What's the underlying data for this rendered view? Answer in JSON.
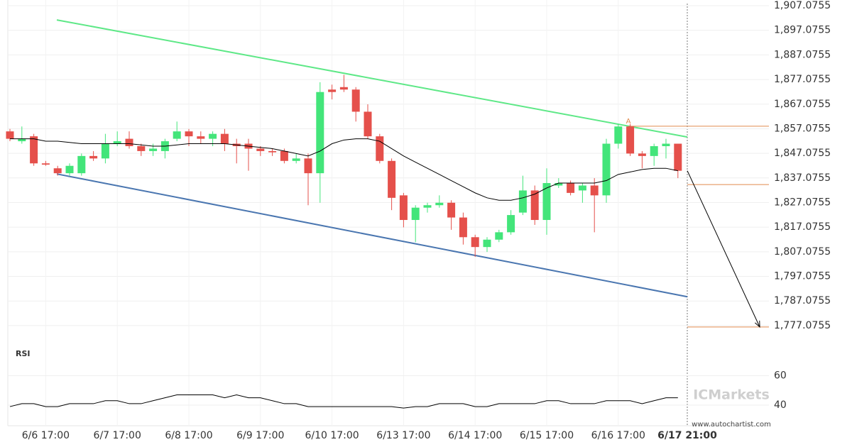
{
  "chart_data": [
    {
      "type": "candlestick",
      "categories": [
        null,
        null,
        null,
        "6/6 17:00",
        null,
        null,
        null,
        null,
        null,
        "6/7 17:00",
        null,
        null,
        null,
        null,
        null,
        "6/8 17:00",
        null,
        null,
        null,
        null,
        null,
        "6/9 17:00",
        null,
        null,
        null,
        null,
        null,
        "6/10 17:00",
        null,
        null,
        null,
        null,
        null,
        "6/13 17:00",
        null,
        null,
        null,
        null,
        null,
        "6/14 17:00",
        null,
        null,
        null,
        null,
        null,
        "6/15 17:00",
        null,
        null,
        null,
        null,
        null,
        "6/16 17:00",
        null,
        null,
        null,
        null,
        null
      ],
      "open": [
        1856,
        1852,
        1854,
        1843,
        1841,
        1839,
        1839,
        1846,
        1845,
        1851,
        1853,
        1850,
        1848,
        1848,
        1853,
        1856,
        1854,
        1853,
        1855,
        1851,
        1851,
        1849,
        1848,
        1848,
        1844,
        1845,
        1839,
        1873,
        1874,
        1873,
        1864,
        1854,
        1844,
        1830,
        1820,
        1825,
        1826,
        1827,
        1821,
        1813,
        1809,
        1812,
        1815,
        1823,
        1832,
        1820,
        1834,
        1835,
        1832,
        1834,
        1830,
        1851,
        1858,
        1847,
        1846,
        1850,
        1851
      ],
      "high": [
        1857,
        1858,
        1855,
        1844,
        1842,
        1843,
        1847,
        1848,
        1855,
        1856,
        1856,
        1851,
        1851,
        1853,
        1860,
        1857,
        1856,
        1856,
        1857,
        1853,
        1853,
        1850,
        1849,
        1849,
        1847,
        1847,
        1876,
        1875,
        1879,
        1874,
        1867,
        1855,
        1845,
        1831,
        1826,
        1827,
        1830,
        1828,
        1823,
        1814,
        1813,
        1816,
        1824,
        1838,
        1834,
        1841,
        1837,
        1836,
        1835,
        1837,
        1853,
        1859,
        1859,
        1848,
        1851,
        1853,
        1851
      ],
      "low": [
        1852,
        1851,
        1842,
        1842,
        1838,
        1838,
        1838,
        1844,
        1843,
        1850,
        1849,
        1846,
        1846,
        1845,
        1852,
        1850,
        1851,
        1850,
        1848,
        1843,
        1840,
        1846,
        1846,
        1843,
        1843,
        1826,
        1827,
        1869,
        1872,
        1860,
        1853,
        1843,
        1824,
        1817,
        1811,
        1823,
        1825,
        1816,
        1810,
        1805,
        1807,
        1811,
        1814,
        1822,
        1818,
        1814,
        1833,
        1830,
        1827,
        1815,
        1827,
        1849,
        1846,
        1841,
        1842,
        1845,
        1837
      ],
      "close": [
        1853,
        1853,
        1843,
        1842.5,
        1839,
        1842,
        1846,
        1845,
        1851,
        1852,
        1850,
        1848,
        1849,
        1852,
        1856,
        1854,
        1853,
        1855,
        1851,
        1850,
        1849,
        1848,
        1847.5,
        1844,
        1845,
        1839,
        1872,
        1872,
        1873,
        1864,
        1854,
        1844,
        1829,
        1820,
        1825,
        1826,
        1827,
        1821,
        1813,
        1809,
        1812,
        1815,
        1822,
        1832,
        1820,
        1835,
        1835,
        1831,
        1834,
        1830,
        1851,
        1858,
        1847,
        1846,
        1850,
        1851,
        1840
      ],
      "up_color": "#43e57a",
      "down_color": "#e5504b",
      "moving_average": {
        "color": "#000000",
        "values": [
          1853,
          1853,
          1853,
          1852,
          1852,
          1851.5,
          1851,
          1851,
          1851,
          1851,
          1851,
          1850.5,
          1850,
          1850,
          1850.5,
          1851,
          1851,
          1851,
          1851,
          1850.5,
          1850,
          1849.5,
          1849,
          1848,
          1847,
          1846,
          1848,
          1851,
          1852.5,
          1853,
          1853,
          1852,
          1849,
          1846,
          1843.5,
          1841,
          1838.5,
          1836,
          1833.5,
          1831,
          1829,
          1828,
          1828,
          1829,
          1830.5,
          1833,
          1835,
          1835,
          1835,
          1835,
          1836,
          1838.5,
          1839.5,
          1840.5,
          1841,
          1841,
          1840
        ]
      },
      "trend_lines": [
        {
          "color": "#5ee887",
          "x": [
            3.93,
            56.79
          ],
          "values": [
            1901.3,
            1853.7
          ]
        },
        {
          "color": "#4a76b0",
          "x": [
            3.93,
            56.79
          ],
          "values": [
            1838.7,
            1788.8
          ]
        }
      ],
      "levels": [
        {
          "value": 1858.1,
          "x_start": 51.85,
          "label": "A"
        },
        {
          "value": 1834.4,
          "x_start": 56.79
        },
        {
          "value": 1776.5,
          "x_start": 56.79
        }
      ],
      "level_color": "#e08a4e",
      "forecast": {
        "x": [
          56.79,
          62.86
        ],
        "values": [
          1840,
          1776.5
        ]
      },
      "current_label": "6/17 21:00",
      "ylim": [
        1768.1,
        1909.4
      ],
      "yticks": [
        {
          "value": 1907.0755,
          "label": "1,907.0755"
        },
        {
          "value": 1897.0755,
          "label": "1,897.0755"
        },
        {
          "value": 1887.0755,
          "label": "1,887.0755"
        },
        {
          "value": 1877.0755,
          "label": "1,877.0755"
        },
        {
          "value": 1867.0755,
          "label": "1,867.0755"
        },
        {
          "value": 1857.0755,
          "label": "1,857.0755"
        },
        {
          "value": 1847.0755,
          "label": "1,847.0755"
        },
        {
          "value": 1837.0755,
          "label": "1,837.0755"
        },
        {
          "value": 1827.0755,
          "label": "1,827.0755"
        },
        {
          "value": 1817.0755,
          "label": "1,817.0755"
        },
        {
          "value": 1807.0755,
          "label": "1,807.0755"
        },
        {
          "value": 1797.0755,
          "label": "1,797.0755"
        },
        {
          "value": 1787.0755,
          "label": "1,787.0755"
        },
        {
          "value": 1777.0755,
          "label": "1,777.0755"
        }
      ],
      "grid": true
    },
    {
      "type": "line",
      "title": "RSI",
      "color": "#000000",
      "values": [
        39,
        41,
        41,
        39,
        39,
        41,
        41,
        41,
        43,
        43,
        41,
        41,
        43,
        45,
        47,
        47,
        47,
        47,
        45,
        47,
        45,
        45,
        43,
        41,
        41,
        39,
        39,
        39,
        39,
        39,
        39,
        39,
        39,
        38,
        39,
        39,
        41,
        41,
        41,
        39,
        39,
        41,
        41,
        41,
        41,
        43,
        43,
        41,
        41,
        41,
        43,
        43,
        43,
        41,
        43,
        45,
        45
      ],
      "ylim": [
        27,
        79
      ],
      "yticks": [
        40,
        60
      ],
      "grid": true
    }
  ],
  "watermark": "www.autochartist.com",
  "logo": "ICMarkets"
}
